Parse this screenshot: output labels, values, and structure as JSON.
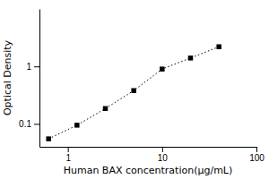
{
  "chart_data": {
    "type": "line",
    "xlabel": "Human BAX concentration(μg/mL)",
    "ylabel": "Optical Density",
    "x": [
      0.625,
      1.25,
      2.5,
      5.0,
      10.0,
      20.0,
      40.0
    ],
    "values": [
      0.055,
      0.095,
      0.185,
      0.38,
      0.9,
      1.4,
      2.2
    ],
    "xlim": [
      0.5,
      100
    ],
    "ylim": [
      0.04,
      10
    ],
    "xticks": [
      1,
      10,
      100
    ],
    "yticks": [
      0.1,
      1
    ],
    "log": true,
    "marker": "square",
    "line_style": "dotted",
    "color": "black"
  }
}
